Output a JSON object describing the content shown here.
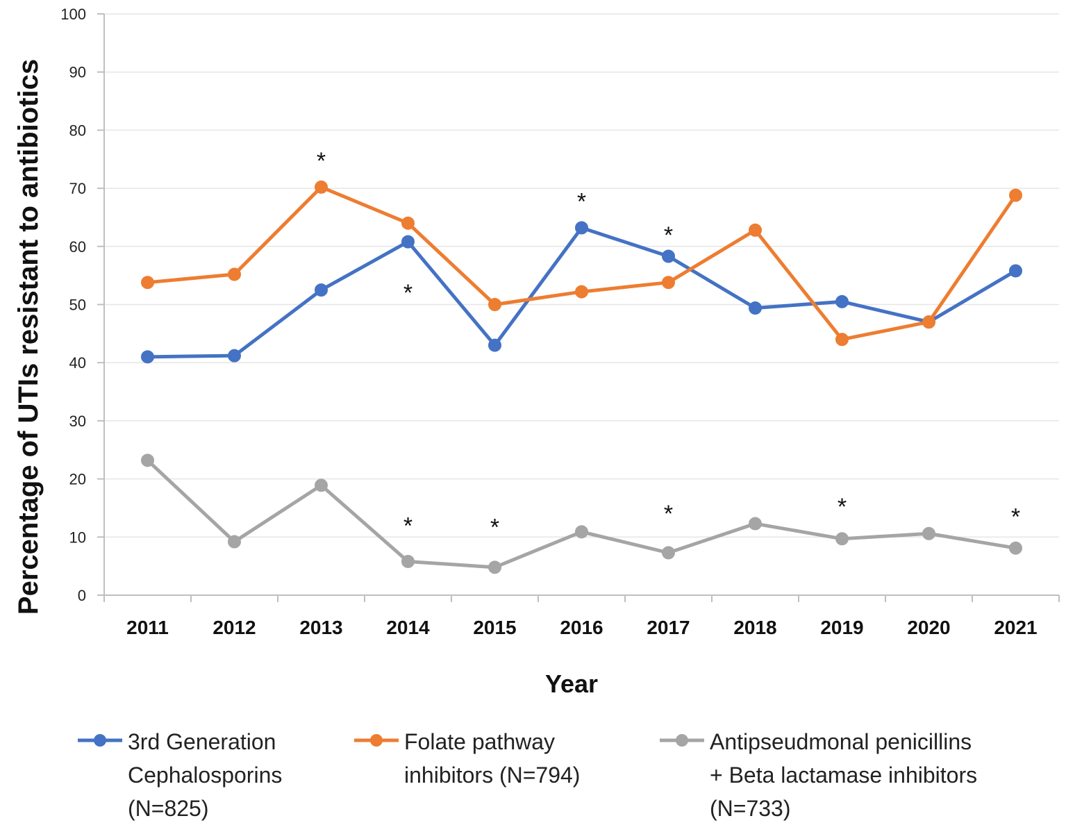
{
  "chart_data": {
    "type": "line",
    "title": "",
    "xlabel": "Year",
    "ylabel": "Percentage of UTIs resistant to antibiotics",
    "ylim": [
      0,
      100
    ],
    "yticks": [
      "0",
      "10",
      "20",
      "30",
      "40",
      "50",
      "60",
      "70",
      "80",
      "90",
      "100"
    ],
    "categories": [
      "2011",
      "2012",
      "2013",
      "2014",
      "2015",
      "2016",
      "2017",
      "2018",
      "2019",
      "2020",
      "2021"
    ],
    "grid": "horizontal",
    "legend_position": "bottom",
    "series": [
      {
        "name": "3rd Generation Cephalosporins (N=825)",
        "legend_lines": [
          "3rd Generation",
          "Cephalosporins",
          "(N=825)"
        ],
        "color": "#4472C4",
        "values": [
          41,
          41.2,
          52.5,
          60.8,
          43,
          63.2,
          58.3,
          49.4,
          50.5,
          47,
          55.8
        ]
      },
      {
        "name": "Folate pathway inhibitors (N=794)",
        "legend_lines": [
          "Folate pathway",
          "inhibitors (N=794)"
        ],
        "color": "#ED7D31",
        "values": [
          53.8,
          55.2,
          70.2,
          64,
          50,
          52.2,
          53.8,
          62.8,
          44,
          47,
          68.8
        ]
      },
      {
        "name": "Antipseudmonal penicillins + Beta lactamase inhibitors (N=733)",
        "legend_lines": [
          "Antipseudmonal penicillins",
          "+ Beta lactamase inhibitors",
          "(N=733)"
        ],
        "color": "#A5A5A5",
        "values": [
          23.2,
          9.2,
          18.9,
          5.8,
          4.8,
          10.9,
          7.3,
          12.3,
          9.7,
          10.6,
          8.1
        ]
      }
    ],
    "annotations": [
      {
        "text": "*",
        "category": "2013",
        "y": 75.5
      },
      {
        "text": "*",
        "category": "2014",
        "y": 52.8
      },
      {
        "text": "*",
        "category": "2016",
        "y": 68.5
      },
      {
        "text": "*",
        "category": "2017",
        "y": 62.7
      },
      {
        "text": "*",
        "category": "2014",
        "y": 12.7
      },
      {
        "text": "*",
        "category": "2015",
        "y": 12.5
      },
      {
        "text": "*",
        "category": "2017",
        "y": 14.8
      },
      {
        "text": "*",
        "category": "2019",
        "y": 16
      },
      {
        "text": "*",
        "category": "2021",
        "y": 14.3
      }
    ]
  }
}
